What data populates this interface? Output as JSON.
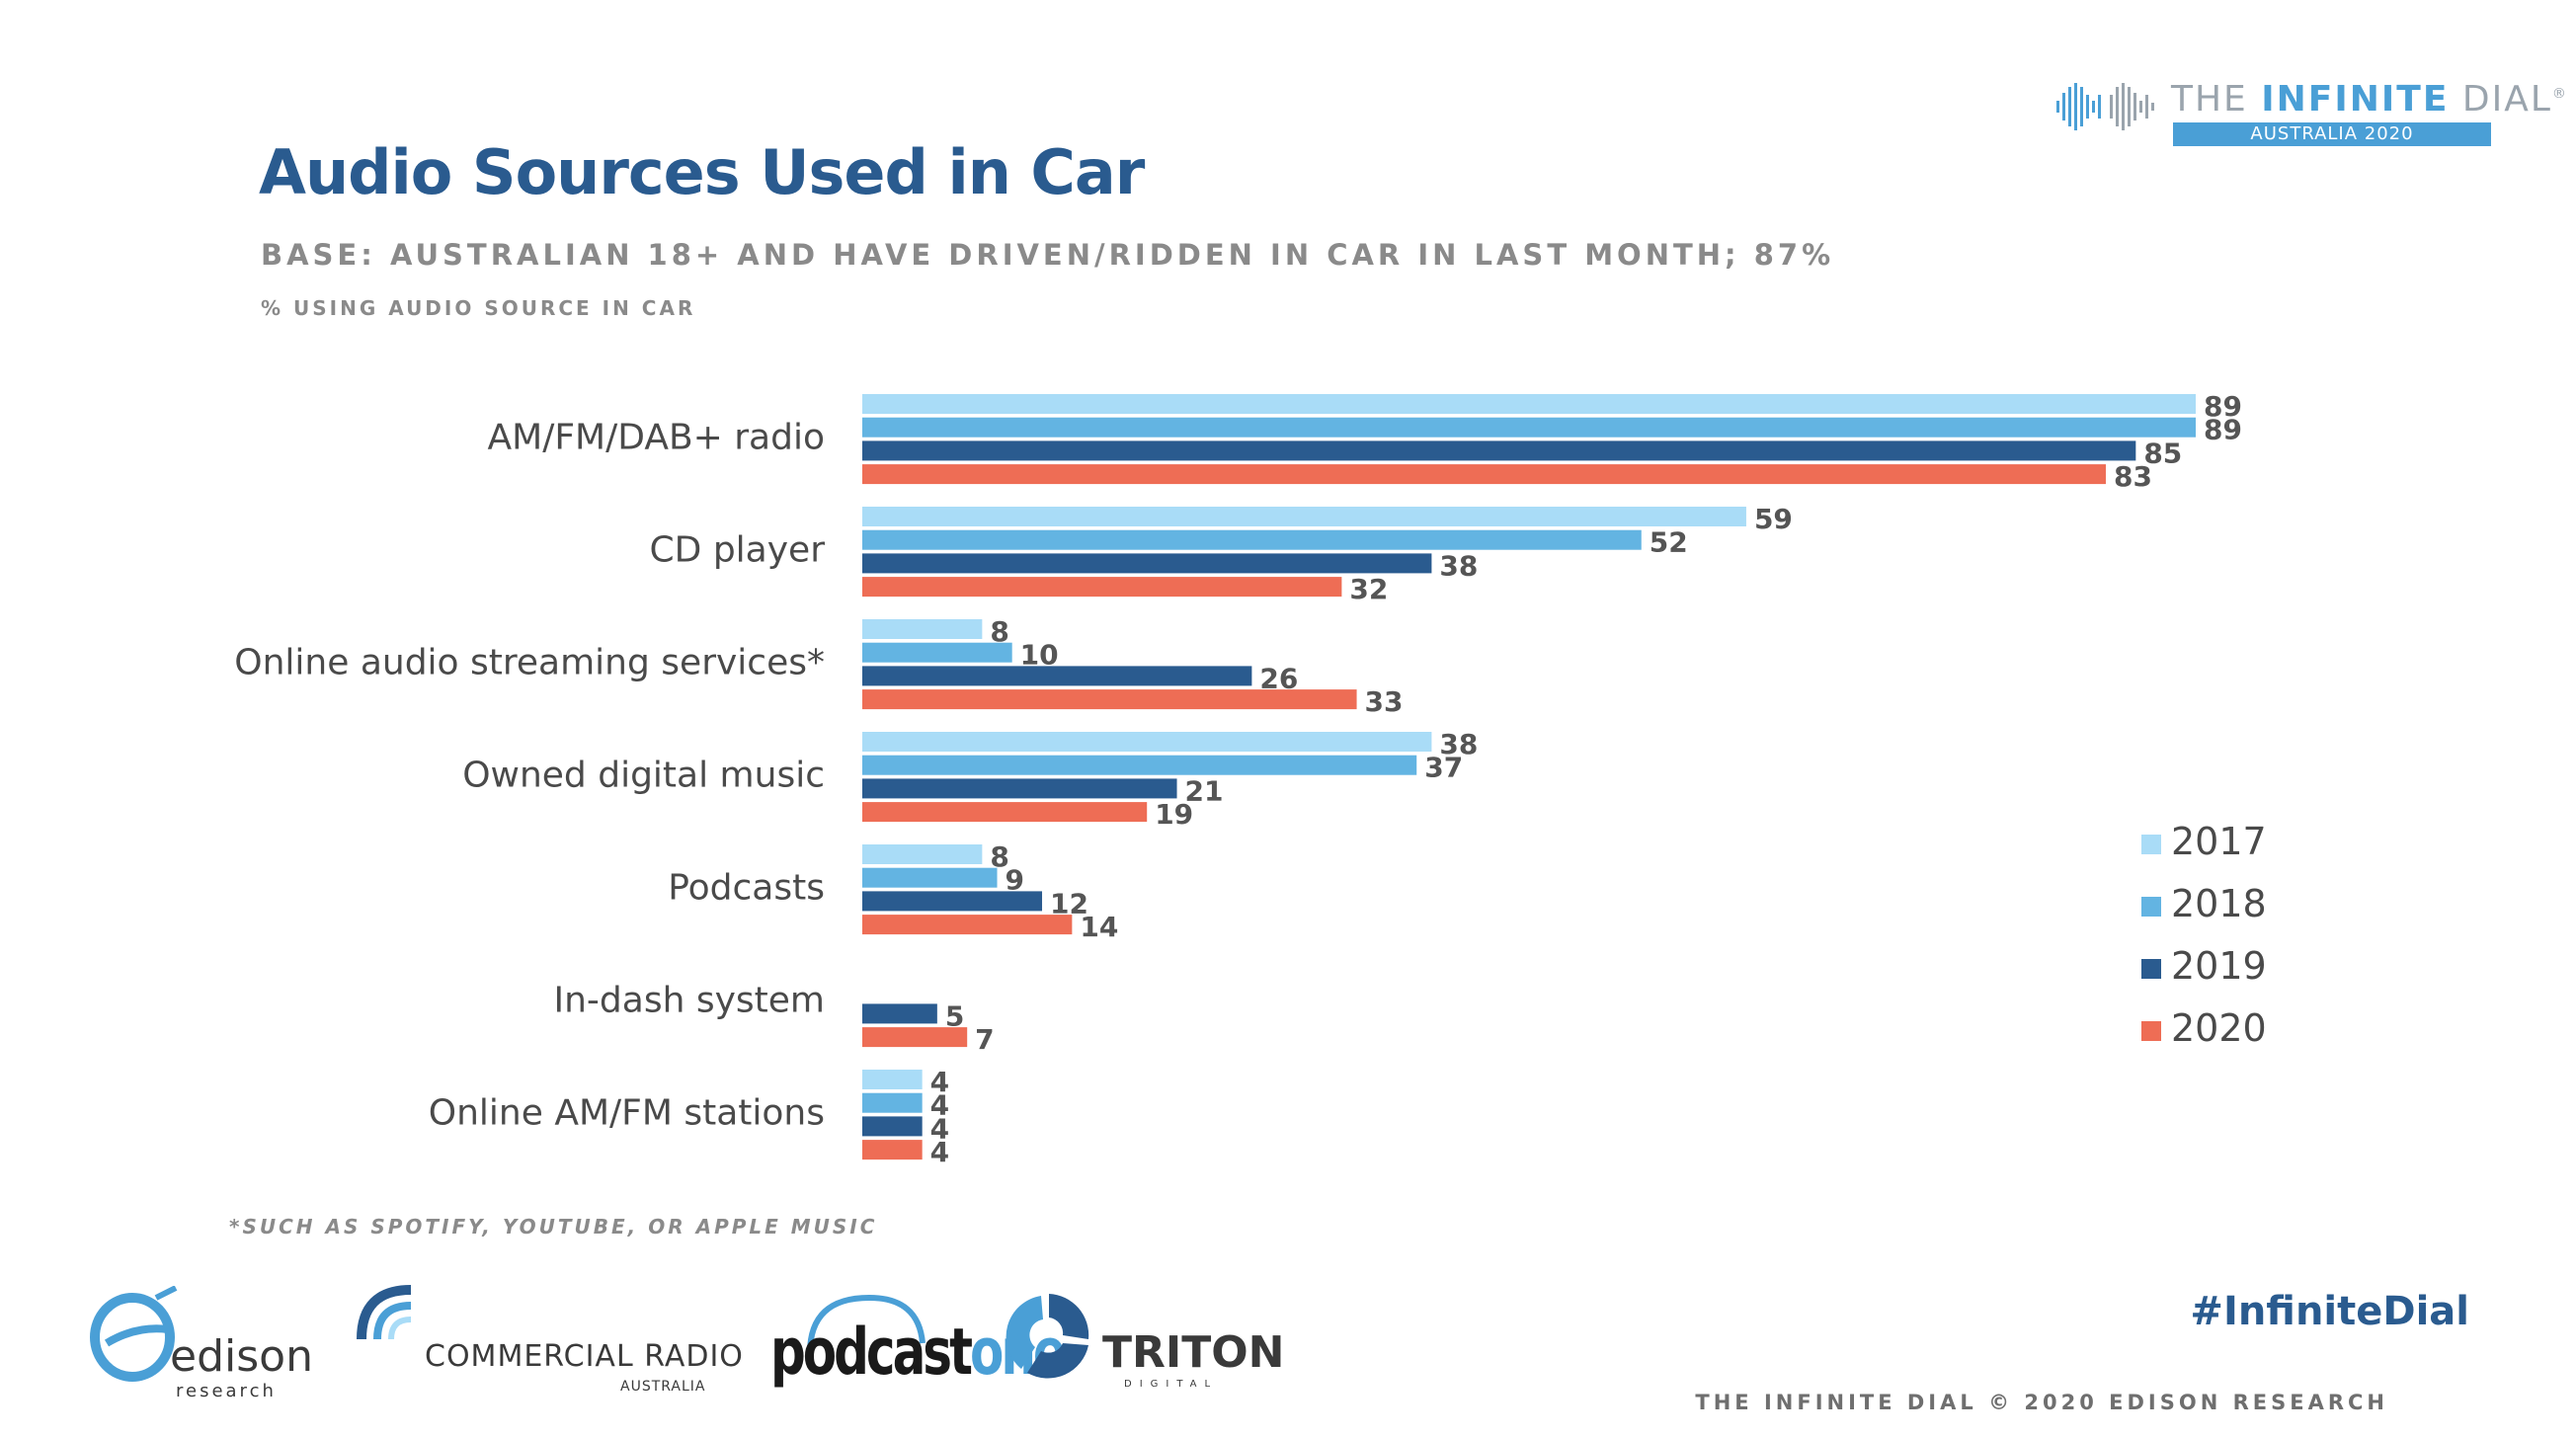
{
  "header": {
    "title": "Audio Sources Used in Car",
    "subtitle": "BASE: AUSTRALIAN 18+ AND HAVE DRIVEN/RIDDEN IN CAR IN LAST MONTH; 87%",
    "metric": "% USING AUDIO SOURCE IN CAR"
  },
  "brand": {
    "name_light": "THE ",
    "name_bold": "INFINITE",
    "name_rest": " DIAL",
    "registered": "®",
    "edition": "AUSTRALIA 2020"
  },
  "chart_data": {
    "type": "bar",
    "orientation": "horizontal",
    "categories": [
      "AM/FM/DAB+ radio",
      "CD player",
      "Online audio streaming services*",
      "Owned digital music",
      "Podcasts",
      "In-dash system",
      "Online AM/FM stations"
    ],
    "series": [
      {
        "name": "2017",
        "color": "#a9dcf7",
        "values": [
          89,
          59,
          8,
          38,
          8,
          null,
          4
        ]
      },
      {
        "name": "2018",
        "color": "#63b4e2",
        "values": [
          89,
          52,
          10,
          37,
          9,
          null,
          4
        ]
      },
      {
        "name": "2019",
        "color": "#2a5b8f",
        "values": [
          85,
          38,
          26,
          21,
          12,
          5,
          4
        ]
      },
      {
        "name": "2020",
        "color": "#ee6d55",
        "values": [
          83,
          32,
          33,
          19,
          14,
          7,
          4
        ]
      }
    ],
    "xlim": [
      0,
      89
    ],
    "legend": "right",
    "grid": false
  },
  "footnote": "*SUCH AS SPOTIFY, YOUTUBE, OR APPLE MUSIC",
  "hashtag": "#InfiniteDial",
  "copyright": "THE INFINITE DIAL  © 2020 EDISON RESEARCH",
  "logos": {
    "edison_name": "edison",
    "edison_sub": "research",
    "cra_name": "COMMERCIAL RADIO",
    "cra_sub": "AUSTRALIA",
    "podcast_a": "podcast",
    "podcast_b": "one",
    "triton_name": "TRITON",
    "triton_sub": "DIGITAL"
  }
}
